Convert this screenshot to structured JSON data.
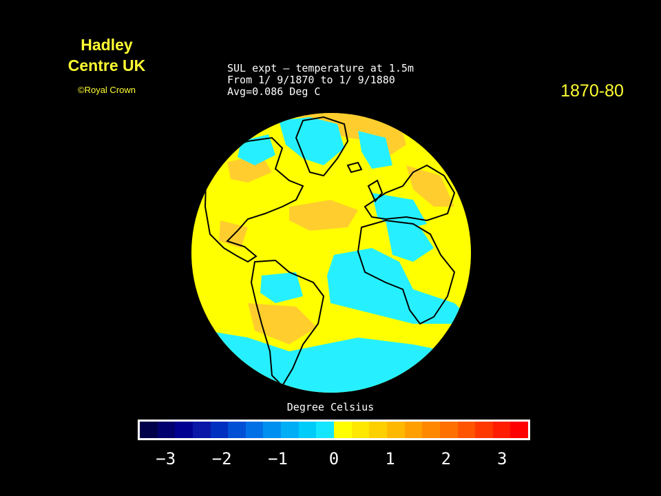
{
  "credit": {
    "title_line1": "Hadley",
    "title_line2": "Centre UK",
    "copyright": "©Royal Crown"
  },
  "period_label": "1870-80",
  "map_title": {
    "line1": "SUL expt – temperature at 1.5m",
    "line2": "From 1/ 9/1870 to 1/ 9/1880",
    "line3": "Avg=0.086 Deg C"
  },
  "legend": {
    "label": "Degree Celsius",
    "ticks": [
      "−3",
      "−2",
      "−1",
      "0",
      "1",
      "2",
      "3"
    ],
    "tick_values": [
      -3,
      -2,
      -1,
      0,
      1,
      2,
      3
    ],
    "range": [
      -3.5,
      3.5
    ],
    "colors": [
      "#00004a",
      "#00006e",
      "#000090",
      "#0a16a8",
      "#0030c0",
      "#0050d6",
      "#0070e6",
      "#0090f0",
      "#00aef6",
      "#00ccfa",
      "#14e6ff",
      "#ffff00",
      "#ffe800",
      "#ffd000",
      "#ffb800",
      "#ffa000",
      "#ff8800",
      "#ff7000",
      "#ff5400",
      "#ff3800",
      "#ff1c00",
      "#ff0000"
    ]
  },
  "map_colors": {
    "background": "#ffff00",
    "cool": "#26f0ff",
    "warm": "#ffce2e",
    "coastline": "#000000"
  }
}
